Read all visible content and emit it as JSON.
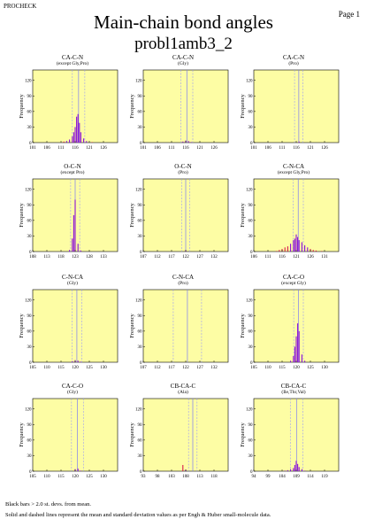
{
  "header": {
    "program": "PROCHECK",
    "page": "Page 1"
  },
  "title": "Main-chain bond angles",
  "subtitle": "probl1amb3_2",
  "colors": {
    "plot_bg": "#fdfda4",
    "bar": "#8a0fd8",
    "bar_outlier": "#d71a4c",
    "mean_line": "#7d7df2",
    "sd_line": "#9a9af6"
  },
  "footer": {
    "line1": "Black bars > 2.0 st. devs. from mean.",
    "line2": "Solid and dashed lines represent the mean and standard deviation values as per Engh & Huber small-molecule data."
  },
  "chart_data": [
    {
      "type": "bar",
      "title": "CA-C-N",
      "subtitle": "(except Gly,Pro)",
      "ylabel": "Frequency",
      "xlim": [
        101,
        131
      ],
      "ylim": [
        0,
        140
      ],
      "xticks": [
        101,
        106,
        111,
        116,
        121,
        126
      ],
      "yticks": [
        0,
        30,
        60,
        90,
        120
      ],
      "mean": 117.2,
      "sd": 2.2,
      "x": [
        112,
        113,
        114,
        115,
        115.5,
        116,
        116.5,
        117,
        117.5,
        118,
        119,
        120,
        122
      ],
      "values": [
        2,
        3,
        6,
        12,
        20,
        30,
        50,
        55,
        38,
        20,
        8,
        3,
        1
      ]
    },
    {
      "type": "bar",
      "title": "CA-C-N",
      "subtitle": "(Gly)",
      "ylabel": "Frequency",
      "xlim": [
        101,
        131
      ],
      "ylim": [
        0,
        140
      ],
      "xticks": [
        101,
        106,
        111,
        116,
        121,
        126
      ],
      "yticks": [
        0,
        30,
        60,
        90,
        120
      ],
      "mean": 116.4,
      "sd": 2.1,
      "x": [
        115,
        116,
        117,
        118
      ],
      "values": [
        2,
        4,
        3,
        1
      ]
    },
    {
      "type": "bar",
      "title": "CA-C-N",
      "subtitle": "(Pro)",
      "ylabel": "Frequency",
      "xlim": [
        101,
        131
      ],
      "ylim": [
        0,
        140
      ],
      "xticks": [
        101,
        106,
        111,
        116,
        121,
        126
      ],
      "yticks": [
        0,
        30,
        60,
        90,
        120
      ],
      "mean": 116.9,
      "sd": 1.5,
      "x": [
        117
      ],
      "values": [
        2
      ]
    },
    {
      "type": "bar",
      "title": "O-C-N",
      "subtitle": "(except Pro)",
      "ylabel": "Frequency",
      "xlim": [
        108,
        138
      ],
      "ylim": [
        0,
        140
      ],
      "xticks": [
        108,
        113,
        118,
        123,
        128,
        133
      ],
      "yticks": [
        0,
        30,
        60,
        90,
        120
      ],
      "mean": 123.0,
      "sd": 1.6,
      "x": [
        121,
        122,
        122.5,
        123,
        124,
        125
      ],
      "values": [
        3,
        25,
        70,
        100,
        15,
        2
      ]
    },
    {
      "type": "bar",
      "title": "O-C-N",
      "subtitle": "(Pro)",
      "ylabel": "Frequency",
      "xlim": [
        107,
        137
      ],
      "ylim": [
        0,
        140
      ],
      "xticks": [
        107,
        112,
        117,
        122,
        127,
        132
      ],
      "yticks": [
        0,
        30,
        60,
        90,
        120
      ],
      "mean": 122.0,
      "sd": 1.4,
      "x": [
        122
      ],
      "values": [
        2
      ]
    },
    {
      "type": "bar",
      "title": "C-N-CA",
      "subtitle": "(except Gly,Pro)",
      "ylabel": "Frequency",
      "xlim": [
        106,
        136
      ],
      "ylim": [
        0,
        140
      ],
      "xticks": [
        106,
        111,
        116,
        121,
        126,
        131
      ],
      "yticks": [
        0,
        30,
        60,
        90,
        120
      ],
      "mean": 121.7,
      "sd": 1.8,
      "x": [
        114,
        115,
        116,
        117,
        118,
        119,
        120,
        120.5,
        121,
        121.5,
        122,
        123,
        124,
        125,
        126,
        127,
        128,
        130
      ],
      "values": [
        1,
        3,
        5,
        8,
        10,
        15,
        22,
        25,
        33,
        28,
        22,
        18,
        12,
        8,
        5,
        3,
        2,
        1
      ]
    },
    {
      "type": "bar",
      "title": "C-N-CA",
      "subtitle": "(Gly)",
      "ylabel": "Frequency",
      "xlim": [
        105,
        135
      ],
      "ylim": [
        0,
        140
      ],
      "xticks": [
        105,
        110,
        115,
        120,
        125,
        130
      ],
      "yticks": [
        0,
        30,
        60,
        90,
        120
      ],
      "mean": 120.6,
      "sd": 1.7,
      "x": [
        119,
        120,
        121,
        122
      ],
      "values": [
        2,
        4,
        3,
        1
      ]
    },
    {
      "type": "bar",
      "title": "C-N-CA",
      "subtitle": "(Pro)",
      "ylabel": "Frequency",
      "xlim": [
        107,
        137
      ],
      "ylim": [
        0,
        140
      ],
      "xticks": [
        107,
        112,
        117,
        122,
        127,
        132
      ],
      "yticks": [
        0,
        30,
        60,
        90,
        120
      ],
      "mean": 122.6,
      "sd": 5.0,
      "x": [],
      "values": []
    },
    {
      "type": "bar",
      "title": "CA-C-O",
      "subtitle": "(except Gly)",
      "ylabel": "Frequency",
      "xlim": [
        105,
        135
      ],
      "ylim": [
        0,
        140
      ],
      "xticks": [
        105,
        110,
        115,
        120,
        125,
        130
      ],
      "yticks": [
        0,
        30,
        60,
        90,
        120
      ],
      "mean": 120.8,
      "sd": 1.7,
      "x": [
        118,
        119,
        119.5,
        120,
        120.5,
        121,
        122,
        123
      ],
      "values": [
        3,
        12,
        30,
        50,
        75,
        60,
        15,
        3
      ]
    },
    {
      "type": "bar",
      "title": "CA-C-O",
      "subtitle": "(Gly)",
      "ylabel": "Frequency",
      "xlim": [
        105,
        135
      ],
      "ylim": [
        0,
        140
      ],
      "xticks": [
        105,
        110,
        115,
        120,
        125,
        130
      ],
      "yticks": [
        0,
        30,
        60,
        90,
        120
      ],
      "mean": 120.8,
      "sd": 2.1,
      "x": [
        120,
        121,
        122
      ],
      "values": [
        4,
        5,
        1
      ]
    },
    {
      "type": "bar",
      "title": "CB-CA-C",
      "subtitle": "(Ala)",
      "ylabel": "Frequency",
      "xlim": [
        93,
        123
      ],
      "ylim": [
        0,
        140
      ],
      "xticks": [
        93,
        98,
        103,
        108,
        113,
        118
      ],
      "yticks": [
        0,
        30,
        60,
        90,
        120
      ],
      "mean": 110.5,
      "sd": 1.5,
      "x": [
        107,
        108
      ],
      "values": [
        12,
        3
      ]
    },
    {
      "type": "bar",
      "title": "CB-CA-C",
      "subtitle": "(Ile,Thr,Val)",
      "ylabel": "Frequency",
      "xlim": [
        94,
        124
      ],
      "ylim": [
        0,
        140
      ],
      "xticks": [
        94,
        99,
        104,
        109,
        114,
        119
      ],
      "yticks": [
        0,
        30,
        60,
        90,
        120
      ],
      "mean": 109.1,
      "sd": 2.2,
      "x": [
        105,
        106,
        107,
        108,
        108.5,
        109,
        109.5,
        110,
        111,
        112
      ],
      "values": [
        1,
        2,
        4,
        6,
        12,
        20,
        14,
        8,
        4,
        1
      ]
    }
  ]
}
